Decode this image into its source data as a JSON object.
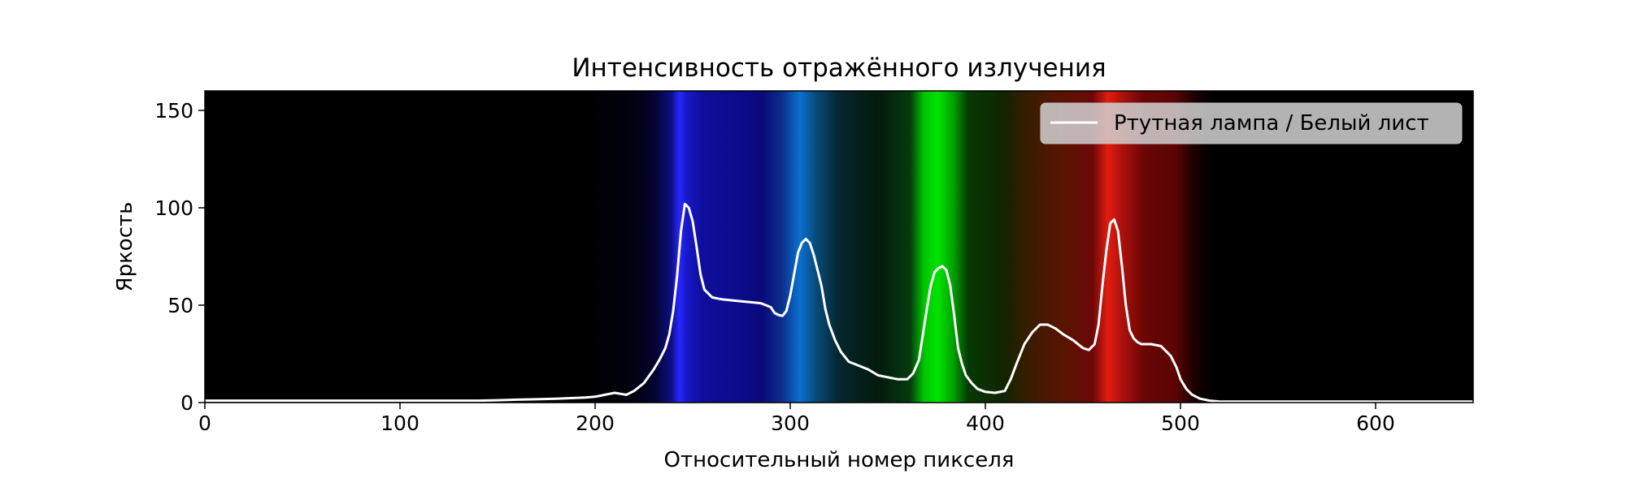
{
  "chart_data": {
    "type": "line",
    "title": "Интенсивность отражённого излучения",
    "xlabel": "Относительный номер пикселя",
    "ylabel": "Яркость",
    "xlim": [
      0,
      650
    ],
    "ylim": [
      0,
      160
    ],
    "xticks": [
      0,
      100,
      200,
      300,
      400,
      500,
      600
    ],
    "yticks": [
      0,
      50,
      100,
      150
    ],
    "grid": false,
    "legend_position": "top-right",
    "background": "spectrum-image",
    "series": [
      {
        "name": "Ртутная лампа / Белый лист",
        "color": "#ffffff",
        "x": [
          0,
          20,
          40,
          60,
          80,
          100,
          120,
          140,
          150,
          160,
          170,
          180,
          185,
          190,
          195,
          200,
          205,
          210,
          213,
          216,
          220,
          225,
          230,
          233,
          236,
          238,
          240,
          242,
          244,
          246,
          248,
          250,
          252,
          254,
          256,
          258,
          260,
          265,
          270,
          275,
          280,
          285,
          290,
          292,
          294,
          296,
          298,
          300,
          302,
          304,
          306,
          308,
          310,
          312,
          314,
          316,
          318,
          320,
          323,
          326,
          330,
          335,
          340,
          345,
          350,
          355,
          360,
          363,
          366,
          368,
          370,
          372,
          374,
          376,
          378,
          380,
          382,
          384,
          386,
          388,
          390,
          393,
          396,
          400,
          405,
          410,
          413,
          416,
          420,
          424,
          428,
          432,
          436,
          440,
          445,
          450,
          453,
          456,
          458,
          460,
          462,
          464,
          466,
          468,
          470,
          472,
          474,
          476,
          478,
          480,
          485,
          490,
          495,
          498,
          500,
          503,
          506,
          510,
          515,
          520,
          530,
          540,
          560,
          580,
          600,
          620,
          650
        ],
        "y": [
          1,
          1,
          1,
          1,
          1,
          1,
          1,
          1,
          1.2,
          1.5,
          1.7,
          2,
          2.2,
          2.4,
          2.6,
          3,
          4,
          5,
          4.5,
          4,
          6,
          10,
          17,
          22,
          28,
          35,
          47,
          65,
          88,
          102,
          100,
          93,
          80,
          66,
          58,
          56,
          54,
          53,
          52.5,
          52,
          51.5,
          51,
          49,
          46,
          45,
          44.5,
          47,
          55,
          66,
          77,
          82,
          84,
          82,
          76,
          68,
          60,
          48,
          40,
          32,
          26,
          21,
          19,
          17,
          14,
          13,
          12,
          12,
          15,
          22,
          35,
          48,
          60,
          67,
          69,
          70,
          68,
          60,
          45,
          28,
          20,
          14,
          10,
          7,
          5.5,
          5,
          6,
          12,
          20,
          30,
          36,
          40,
          40,
          38,
          35,
          32,
          28,
          27,
          30,
          40,
          60,
          78,
          92,
          94,
          88,
          70,
          50,
          37,
          33,
          31,
          30,
          30,
          29,
          24,
          18,
          12,
          7,
          4,
          2,
          1,
          0.5,
          0.5,
          0.5,
          0.5,
          0.5,
          0.5,
          0.5,
          0.5
        ]
      }
    ]
  }
}
